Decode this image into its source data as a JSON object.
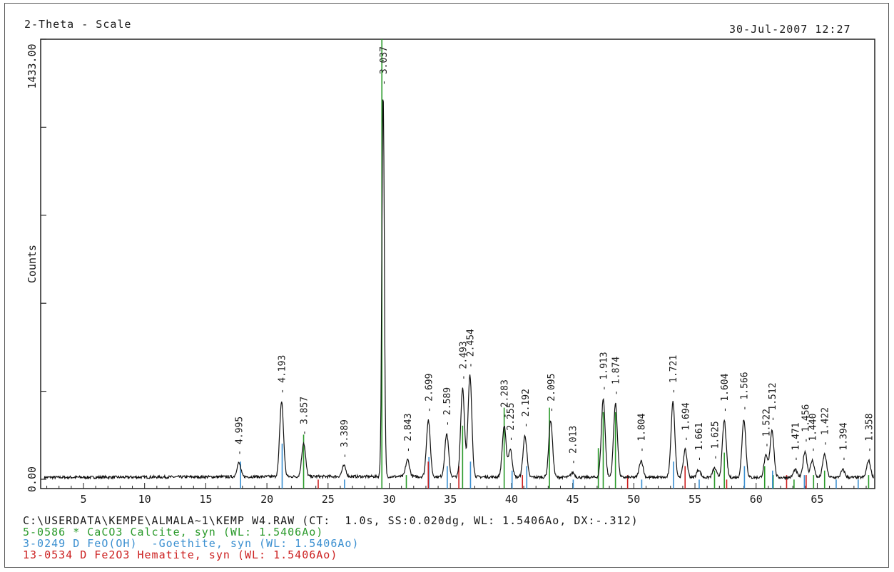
{
  "header": {
    "left": "2-Theta - Scale",
    "right": "30-Jul-2007 12:27"
  },
  "chart_data": {
    "type": "line",
    "xlabel": "",
    "ylabel": "Counts",
    "xlim": [
      1.5,
      69.7
    ],
    "ylim": [
      0,
      1433
    ],
    "y_tick_labels": [
      "0.00",
      "1433.00"
    ],
    "x_ticks": [
      5,
      10,
      15,
      20,
      25,
      30,
      35,
      40,
      45,
      50,
      55,
      60,
      65
    ],
    "grid": false,
    "peaks": [
      {
        "x": 17.7,
        "y": 45,
        "label": "4.995"
      },
      {
        "x": 21.2,
        "y": 245,
        "label": "4.193"
      },
      {
        "x": 23.0,
        "y": 110,
        "label": "3.857"
      },
      {
        "x": 26.3,
        "y": 35,
        "label": "3.389"
      },
      {
        "x": 29.5,
        "y": 1250,
        "label": "3.037"
      },
      {
        "x": 31.5,
        "y": 55,
        "label": "2.843"
      },
      {
        "x": 33.2,
        "y": 185,
        "label": "2.699"
      },
      {
        "x": 34.7,
        "y": 140,
        "label": "2.589"
      },
      {
        "x": 36.0,
        "y": 290,
        "label": "2.493"
      },
      {
        "x": 36.6,
        "y": 330,
        "label": "2.454"
      },
      {
        "x": 39.4,
        "y": 165,
        "label": "2.283"
      },
      {
        "x": 39.9,
        "y": 90,
        "label": "2.255"
      },
      {
        "x": 41.1,
        "y": 135,
        "label": "2.192"
      },
      {
        "x": 43.2,
        "y": 185,
        "label": "2.095"
      },
      {
        "x": 45.0,
        "y": 15,
        "label": "2.013"
      },
      {
        "x": 47.5,
        "y": 255,
        "label": "1.913"
      },
      {
        "x": 48.5,
        "y": 240,
        "label": "1.874"
      },
      {
        "x": 50.6,
        "y": 55,
        "label": "1.804"
      },
      {
        "x": 53.2,
        "y": 245,
        "label": "1.721"
      },
      {
        "x": 54.2,
        "y": 90,
        "label": "1.694"
      },
      {
        "x": 55.3,
        "y": 25,
        "label": "1.661"
      },
      {
        "x": 56.6,
        "y": 30,
        "label": "1.625"
      },
      {
        "x": 57.4,
        "y": 185,
        "label": "1.604"
      },
      {
        "x": 59.0,
        "y": 190,
        "label": "1.566"
      },
      {
        "x": 60.8,
        "y": 70,
        "label": "1.522"
      },
      {
        "x": 61.3,
        "y": 155,
        "label": "1.512"
      },
      {
        "x": 63.2,
        "y": 25,
        "label": "1.471"
      },
      {
        "x": 64.0,
        "y": 85,
        "label": "1.456"
      },
      {
        "x": 64.6,
        "y": 55,
        "label": "1.440"
      },
      {
        "x": 65.6,
        "y": 75,
        "label": "1.422"
      },
      {
        "x": 67.1,
        "y": 25,
        "label": "1.394"
      },
      {
        "x": 69.2,
        "y": 55,
        "label": "1.358"
      }
    ],
    "reference_phases": [
      {
        "name": "5-0586 * CaCO3 Calcite, syn (WL: 1.5406Ao)",
        "color": "#2a9a2a",
        "lines": [
          [
            23.0,
            0.12
          ],
          [
            29.4,
            1.0
          ],
          [
            31.4,
            0.03
          ],
          [
            36.0,
            0.14
          ],
          [
            39.4,
            0.18
          ],
          [
            43.1,
            0.18
          ],
          [
            47.1,
            0.09
          ],
          [
            47.5,
            0.17
          ],
          [
            48.5,
            0.17
          ],
          [
            56.6,
            0.04
          ],
          [
            57.4,
            0.08
          ],
          [
            60.7,
            0.05
          ],
          [
            61.4,
            0.03
          ],
          [
            63.1,
            0.02
          ],
          [
            64.7,
            0.03
          ],
          [
            65.6,
            0.04
          ],
          [
            69.2,
            0.03
          ]
        ]
      },
      {
        "name": "3-0249 D FeO(OH)  -Goethite, syn (WL: 1.5406Ao)",
        "color": "#3a8fd0",
        "lines": [
          [
            17.8,
            0.06
          ],
          [
            21.2,
            0.1
          ],
          [
            26.3,
            0.02
          ],
          [
            33.2,
            0.07
          ],
          [
            34.7,
            0.05
          ],
          [
            36.6,
            0.06
          ],
          [
            40.0,
            0.04
          ],
          [
            41.2,
            0.05
          ],
          [
            45.0,
            0.02
          ],
          [
            50.6,
            0.02
          ],
          [
            53.2,
            0.06
          ],
          [
            55.3,
            0.02
          ],
          [
            59.0,
            0.05
          ],
          [
            61.3,
            0.04
          ],
          [
            63.9,
            0.03
          ],
          [
            66.5,
            0.02
          ],
          [
            68.3,
            0.02
          ]
        ]
      },
      {
        "name": "13-0534 D Fe2O3 Hematite, syn (WL: 1.5406Ao)",
        "color": "#cc2020",
        "lines": [
          [
            24.1,
            0.02
          ],
          [
            33.1,
            0.06
          ],
          [
            35.6,
            0.05
          ],
          [
            40.8,
            0.03
          ],
          [
            49.4,
            0.03
          ],
          [
            54.1,
            0.05
          ],
          [
            57.5,
            0.02
          ],
          [
            62.4,
            0.03
          ],
          [
            64.0,
            0.03
          ]
        ]
      }
    ]
  },
  "footer": {
    "file_line": "C:\\USERDATA\\KEMPE\\ALMALA~1\\KEMP W4.RAW (CT:  1.0s, SS:0.020dg, WL: 1.5406Ao, DX:-.312)"
  }
}
